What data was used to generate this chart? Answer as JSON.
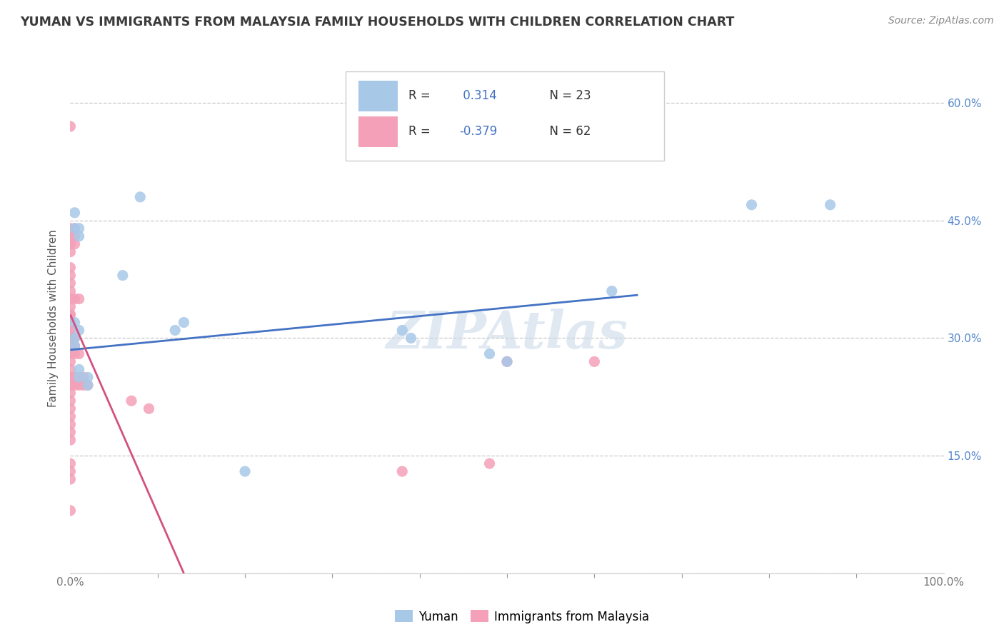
{
  "title": "YUMAN VS IMMIGRANTS FROM MALAYSIA FAMILY HOUSEHOLDS WITH CHILDREN CORRELATION CHART",
  "source": "Source: ZipAtlas.com",
  "ylabel": "Family Households with Children",
  "watermark": "ZIPAtlas",
  "bottom_legend": [
    "Yuman",
    "Immigrants from Malaysia"
  ],
  "xlim": [
    0.0,
    1.0
  ],
  "ylim": [
    0.0,
    0.65
  ],
  "xticks_major": [
    0.0,
    1.0
  ],
  "xticks_minor": [
    0.1,
    0.2,
    0.3,
    0.4,
    0.5,
    0.6,
    0.7,
    0.8,
    0.9
  ],
  "xticklabels_major": [
    "0.0%",
    "100.0%"
  ],
  "yticks": [
    0.0,
    0.15,
    0.3,
    0.45,
    0.6
  ],
  "yticklabels_right": [
    "",
    "15.0%",
    "30.0%",
    "45.0%",
    "60.0%"
  ],
  "blue_scatter": [
    [
      0.005,
      0.29
    ],
    [
      0.005,
      0.3
    ],
    [
      0.005,
      0.32
    ],
    [
      0.005,
      0.44
    ],
    [
      0.005,
      0.46
    ],
    [
      0.01,
      0.44
    ],
    [
      0.01,
      0.43
    ],
    [
      0.01,
      0.25
    ],
    [
      0.01,
      0.26
    ],
    [
      0.01,
      0.31
    ],
    [
      0.02,
      0.25
    ],
    [
      0.02,
      0.24
    ],
    [
      0.06,
      0.38
    ],
    [
      0.08,
      0.48
    ],
    [
      0.12,
      0.31
    ],
    [
      0.13,
      0.32
    ],
    [
      0.2,
      0.13
    ],
    [
      0.38,
      0.31
    ],
    [
      0.39,
      0.3
    ],
    [
      0.48,
      0.28
    ],
    [
      0.5,
      0.27
    ],
    [
      0.62,
      0.36
    ],
    [
      0.78,
      0.47
    ],
    [
      0.87,
      0.47
    ]
  ],
  "pink_scatter": [
    [
      0.0,
      0.57
    ],
    [
      0.0,
      0.44
    ],
    [
      0.0,
      0.43
    ],
    [
      0.0,
      0.42
    ],
    [
      0.0,
      0.41
    ],
    [
      0.0,
      0.39
    ],
    [
      0.0,
      0.38
    ],
    [
      0.0,
      0.37
    ],
    [
      0.0,
      0.36
    ],
    [
      0.0,
      0.35
    ],
    [
      0.0,
      0.34
    ],
    [
      0.0,
      0.33
    ],
    [
      0.0,
      0.33
    ],
    [
      0.0,
      0.32
    ],
    [
      0.0,
      0.31
    ],
    [
      0.0,
      0.31
    ],
    [
      0.0,
      0.3
    ],
    [
      0.0,
      0.3
    ],
    [
      0.0,
      0.29
    ],
    [
      0.0,
      0.28
    ],
    [
      0.0,
      0.27
    ],
    [
      0.0,
      0.26
    ],
    [
      0.0,
      0.25
    ],
    [
      0.0,
      0.24
    ],
    [
      0.0,
      0.23
    ],
    [
      0.0,
      0.22
    ],
    [
      0.0,
      0.21
    ],
    [
      0.0,
      0.2
    ],
    [
      0.0,
      0.19
    ],
    [
      0.0,
      0.18
    ],
    [
      0.0,
      0.17
    ],
    [
      0.0,
      0.14
    ],
    [
      0.0,
      0.13
    ],
    [
      0.0,
      0.12
    ],
    [
      0.0,
      0.08
    ],
    [
      0.005,
      0.44
    ],
    [
      0.005,
      0.43
    ],
    [
      0.005,
      0.42
    ],
    [
      0.005,
      0.35
    ],
    [
      0.005,
      0.3
    ],
    [
      0.005,
      0.29
    ],
    [
      0.005,
      0.28
    ],
    [
      0.005,
      0.25
    ],
    [
      0.005,
      0.24
    ],
    [
      0.01,
      0.35
    ],
    [
      0.01,
      0.28
    ],
    [
      0.01,
      0.24
    ],
    [
      0.015,
      0.25
    ],
    [
      0.015,
      0.24
    ],
    [
      0.02,
      0.24
    ],
    [
      0.07,
      0.22
    ],
    [
      0.09,
      0.21
    ],
    [
      0.38,
      0.13
    ],
    [
      0.48,
      0.14
    ],
    [
      0.5,
      0.27
    ],
    [
      0.6,
      0.27
    ]
  ],
  "blue_line_x": [
    0.0,
    0.65
  ],
  "blue_line_y": [
    0.285,
    0.355
  ],
  "pink_line_x": [
    0.0,
    0.13
  ],
  "pink_line_y": [
    0.33,
    0.0
  ],
  "blue_scatter_color": "#a8c8e8",
  "pink_scatter_color": "#f4a0b8",
  "blue_line_color": "#4472c4",
  "pink_line_color": "#d45080",
  "background_color": "#ffffff",
  "grid_color": "#c8c8c8",
  "title_color": "#3a3a3a",
  "source_color": "#888888",
  "ylabel_color": "#555555",
  "tick_label_color": "#777777",
  "right_tick_color": "#5588cc"
}
